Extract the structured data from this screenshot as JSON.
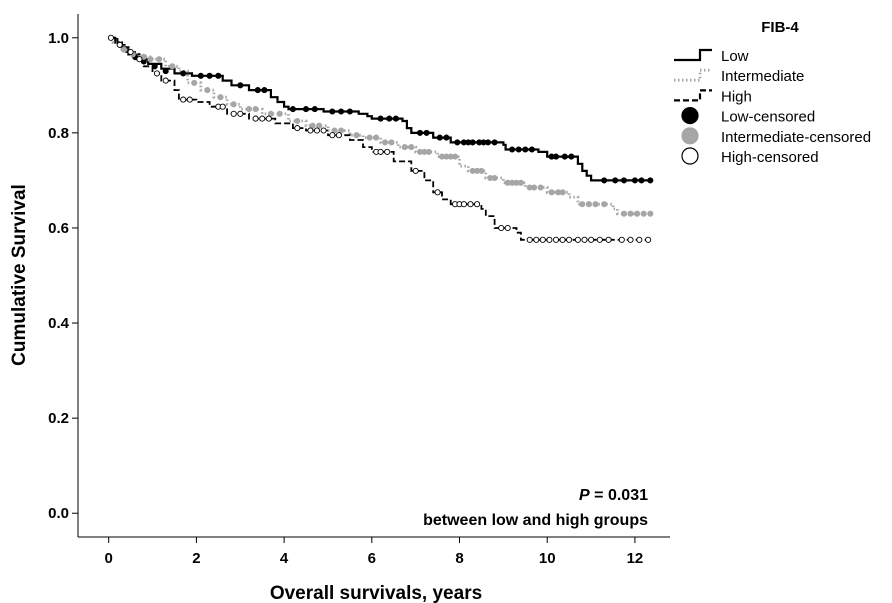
{
  "chart_data": {
    "type": "line",
    "xlabel": "Overall survivals, years",
    "ylabel": "Cumulative Survival",
    "xlim": [
      -0.7,
      12.8
    ],
    "ylim": [
      -0.05,
      1.05
    ],
    "x_ticks": [
      0,
      2,
      4,
      6,
      8,
      10,
      12
    ],
    "x_tick_labels": [
      "0",
      "2",
      "4",
      "6",
      "8",
      "10",
      "12"
    ],
    "y_ticks": [
      0.0,
      0.2,
      0.4,
      0.6,
      0.8,
      1.0
    ],
    "y_tick_labels": [
      "0.0",
      "0.2",
      "0.4",
      "0.6",
      "0.8",
      "1.0"
    ],
    "grid": false,
    "legend_title": "FIB-4",
    "legend_position": "top-right",
    "legend_entries": [
      {
        "label": "Low",
        "kind": "line",
        "style": "solid",
        "color": "#000000"
      },
      {
        "label": "Intermediate",
        "kind": "line",
        "style": "dotted",
        "color": "#a6a6a6"
      },
      {
        "label": "High",
        "kind": "line",
        "style": "dashed",
        "color": "#000000"
      },
      {
        "label": "Low-censored",
        "kind": "marker",
        "fill": "#000000",
        "stroke": "#000000"
      },
      {
        "label": "Intermediate-censored",
        "kind": "marker",
        "fill": "#a6a6a6",
        "stroke": "#a6a6a6"
      },
      {
        "label": "High-censored",
        "kind": "marker",
        "fill": "#ffffff",
        "stroke": "#000000"
      }
    ],
    "annotation": {
      "p_label": "P",
      "p_value": " = 0.031",
      "text": "between low and high groups"
    },
    "series": [
      {
        "name": "Low",
        "color": "#000000",
        "dash": "",
        "width": 2.2,
        "censor_fill": "#000000",
        "censor_stroke": "#000000",
        "steps": [
          [
            0,
            1.0
          ],
          [
            0.15,
            0.99
          ],
          [
            0.3,
            0.98
          ],
          [
            0.45,
            0.965
          ],
          [
            0.7,
            0.955
          ],
          [
            0.9,
            0.945
          ],
          [
            1.2,
            0.935
          ],
          [
            1.5,
            0.925
          ],
          [
            1.9,
            0.92
          ],
          [
            2.6,
            0.91
          ],
          [
            2.8,
            0.9
          ],
          [
            3.2,
            0.89
          ],
          [
            3.7,
            0.875
          ],
          [
            3.85,
            0.865
          ],
          [
            4.0,
            0.855
          ],
          [
            4.1,
            0.85
          ],
          [
            4.9,
            0.845
          ],
          [
            5.7,
            0.84
          ],
          [
            5.9,
            0.835
          ],
          [
            6.0,
            0.83
          ],
          [
            6.7,
            0.825
          ],
          [
            6.8,
            0.81
          ],
          [
            6.9,
            0.8
          ],
          [
            7.4,
            0.79
          ],
          [
            7.8,
            0.78
          ],
          [
            9.0,
            0.775
          ],
          [
            9.05,
            0.765
          ],
          [
            9.8,
            0.76
          ],
          [
            10.0,
            0.75
          ],
          [
            10.7,
            0.735
          ],
          [
            10.8,
            0.72
          ],
          [
            10.9,
            0.71
          ],
          [
            11.0,
            0.7
          ],
          [
            12.4,
            0.7
          ]
        ],
        "censored": [
          [
            0.6,
            0.96
          ],
          [
            0.8,
            0.95
          ],
          [
            1.05,
            0.94
          ],
          [
            1.3,
            0.93
          ],
          [
            1.7,
            0.925
          ],
          [
            2.1,
            0.92
          ],
          [
            2.3,
            0.92
          ],
          [
            2.5,
            0.92
          ],
          [
            3.0,
            0.9
          ],
          [
            3.4,
            0.89
          ],
          [
            3.55,
            0.89
          ],
          [
            4.2,
            0.85
          ],
          [
            4.5,
            0.85
          ],
          [
            4.7,
            0.85
          ],
          [
            5.1,
            0.845
          ],
          [
            5.3,
            0.845
          ],
          [
            5.5,
            0.845
          ],
          [
            6.2,
            0.83
          ],
          [
            6.4,
            0.83
          ],
          [
            6.55,
            0.83
          ],
          [
            7.1,
            0.8
          ],
          [
            7.25,
            0.8
          ],
          [
            7.55,
            0.79
          ],
          [
            7.7,
            0.79
          ],
          [
            7.95,
            0.78
          ],
          [
            8.1,
            0.78
          ],
          [
            8.2,
            0.78
          ],
          [
            8.3,
            0.78
          ],
          [
            8.45,
            0.78
          ],
          [
            8.55,
            0.78
          ],
          [
            8.65,
            0.78
          ],
          [
            8.8,
            0.78
          ],
          [
            9.2,
            0.765
          ],
          [
            9.35,
            0.765
          ],
          [
            9.5,
            0.765
          ],
          [
            9.65,
            0.765
          ],
          [
            10.1,
            0.75
          ],
          [
            10.2,
            0.75
          ],
          [
            10.4,
            0.75
          ],
          [
            10.55,
            0.75
          ],
          [
            11.3,
            0.7
          ],
          [
            11.55,
            0.7
          ],
          [
            11.75,
            0.7
          ],
          [
            12.0,
            0.7
          ],
          [
            12.15,
            0.7
          ],
          [
            12.35,
            0.7
          ]
        ]
      },
      {
        "name": "Intermediate",
        "color": "#a6a6a6",
        "dash": "1.5,2.5",
        "width": 2.8,
        "censor_fill": "#a6a6a6",
        "censor_stroke": "#a6a6a6",
        "steps": [
          [
            0,
            1.0
          ],
          [
            0.1,
            0.99
          ],
          [
            0.3,
            0.975
          ],
          [
            0.5,
            0.965
          ],
          [
            0.7,
            0.96
          ],
          [
            1.0,
            0.955
          ],
          [
            1.3,
            0.94
          ],
          [
            1.6,
            0.93
          ],
          [
            1.8,
            0.905
          ],
          [
            2.1,
            0.89
          ],
          [
            2.4,
            0.875
          ],
          [
            2.7,
            0.86
          ],
          [
            3.0,
            0.85
          ],
          [
            3.5,
            0.84
          ],
          [
            4.1,
            0.825
          ],
          [
            4.5,
            0.815
          ],
          [
            5.0,
            0.805
          ],
          [
            5.5,
            0.795
          ],
          [
            5.8,
            0.79
          ],
          [
            6.2,
            0.78
          ],
          [
            6.6,
            0.77
          ],
          [
            7.0,
            0.76
          ],
          [
            7.5,
            0.75
          ],
          [
            8.0,
            0.73
          ],
          [
            8.2,
            0.72
          ],
          [
            8.6,
            0.705
          ],
          [
            9.0,
            0.695
          ],
          [
            9.5,
            0.685
          ],
          [
            10.0,
            0.675
          ],
          [
            10.5,
            0.665
          ],
          [
            10.7,
            0.65
          ],
          [
            11.5,
            0.64
          ],
          [
            11.6,
            0.63
          ],
          [
            12.4,
            0.63
          ]
        ],
        "censored": [
          [
            0.35,
            0.975
          ],
          [
            0.55,
            0.965
          ],
          [
            0.8,
            0.96
          ],
          [
            0.95,
            0.955
          ],
          [
            1.15,
            0.955
          ],
          [
            1.45,
            0.94
          ],
          [
            1.95,
            0.905
          ],
          [
            2.25,
            0.89
          ],
          [
            2.55,
            0.875
          ],
          [
            2.85,
            0.86
          ],
          [
            3.2,
            0.85
          ],
          [
            3.35,
            0.85
          ],
          [
            3.7,
            0.84
          ],
          [
            3.9,
            0.84
          ],
          [
            4.3,
            0.825
          ],
          [
            4.65,
            0.815
          ],
          [
            4.8,
            0.815
          ],
          [
            5.15,
            0.805
          ],
          [
            5.3,
            0.805
          ],
          [
            5.65,
            0.795
          ],
          [
            5.95,
            0.79
          ],
          [
            6.1,
            0.79
          ],
          [
            6.3,
            0.78
          ],
          [
            6.45,
            0.78
          ],
          [
            6.75,
            0.77
          ],
          [
            6.9,
            0.77
          ],
          [
            7.1,
            0.76
          ],
          [
            7.2,
            0.76
          ],
          [
            7.3,
            0.76
          ],
          [
            7.6,
            0.75
          ],
          [
            7.7,
            0.75
          ],
          [
            7.8,
            0.75
          ],
          [
            7.9,
            0.75
          ],
          [
            8.3,
            0.72
          ],
          [
            8.4,
            0.72
          ],
          [
            8.5,
            0.72
          ],
          [
            8.7,
            0.705
          ],
          [
            8.8,
            0.705
          ],
          [
            9.1,
            0.695
          ],
          [
            9.2,
            0.695
          ],
          [
            9.3,
            0.695
          ],
          [
            9.4,
            0.695
          ],
          [
            9.6,
            0.685
          ],
          [
            9.7,
            0.685
          ],
          [
            9.85,
            0.685
          ],
          [
            10.1,
            0.675
          ],
          [
            10.25,
            0.675
          ],
          [
            10.35,
            0.675
          ],
          [
            10.8,
            0.65
          ],
          [
            10.95,
            0.65
          ],
          [
            11.1,
            0.65
          ],
          [
            11.3,
            0.65
          ],
          [
            11.75,
            0.63
          ],
          [
            11.9,
            0.63
          ],
          [
            12.05,
            0.63
          ],
          [
            12.2,
            0.63
          ],
          [
            12.35,
            0.63
          ]
        ]
      },
      {
        "name": "High",
        "color": "#000000",
        "dash": "6,3",
        "width": 1.8,
        "censor_fill": "#ffffff",
        "censor_stroke": "#000000",
        "steps": [
          [
            0,
            1.0
          ],
          [
            0.2,
            0.985
          ],
          [
            0.4,
            0.97
          ],
          [
            0.6,
            0.955
          ],
          [
            0.8,
            0.94
          ],
          [
            1.0,
            0.925
          ],
          [
            1.2,
            0.91
          ],
          [
            1.5,
            0.89
          ],
          [
            1.6,
            0.87
          ],
          [
            2.0,
            0.865
          ],
          [
            2.3,
            0.855
          ],
          [
            2.7,
            0.84
          ],
          [
            3.2,
            0.83
          ],
          [
            3.8,
            0.82
          ],
          [
            4.2,
            0.81
          ],
          [
            4.5,
            0.805
          ],
          [
            5.0,
            0.795
          ],
          [
            5.5,
            0.785
          ],
          [
            5.8,
            0.77
          ],
          [
            6.0,
            0.76
          ],
          [
            6.5,
            0.74
          ],
          [
            6.9,
            0.72
          ],
          [
            7.2,
            0.7
          ],
          [
            7.4,
            0.675
          ],
          [
            7.6,
            0.66
          ],
          [
            7.8,
            0.65
          ],
          [
            8.5,
            0.64
          ],
          [
            8.6,
            0.625
          ],
          [
            8.8,
            0.6
          ],
          [
            9.3,
            0.59
          ],
          [
            9.4,
            0.575
          ],
          [
            12.4,
            0.575
          ]
        ],
        "censored": [
          [
            0.05,
            1.0
          ],
          [
            0.25,
            0.985
          ],
          [
            0.5,
            0.97
          ],
          [
            0.7,
            0.955
          ],
          [
            1.1,
            0.925
          ],
          [
            1.3,
            0.91
          ],
          [
            1.7,
            0.87
          ],
          [
            1.85,
            0.87
          ],
          [
            2.5,
            0.855
          ],
          [
            2.6,
            0.855
          ],
          [
            2.85,
            0.84
          ],
          [
            3.0,
            0.84
          ],
          [
            3.35,
            0.83
          ],
          [
            3.5,
            0.83
          ],
          [
            3.65,
            0.83
          ],
          [
            4.3,
            0.81
          ],
          [
            4.6,
            0.805
          ],
          [
            4.75,
            0.805
          ],
          [
            4.9,
            0.805
          ],
          [
            5.1,
            0.795
          ],
          [
            5.25,
            0.795
          ],
          [
            6.1,
            0.76
          ],
          [
            6.2,
            0.76
          ],
          [
            6.35,
            0.76
          ],
          [
            7.0,
            0.72
          ],
          [
            7.5,
            0.675
          ],
          [
            7.9,
            0.65
          ],
          [
            8.0,
            0.65
          ],
          [
            8.1,
            0.65
          ],
          [
            8.25,
            0.65
          ],
          [
            8.4,
            0.65
          ],
          [
            8.95,
            0.6
          ],
          [
            9.1,
            0.6
          ],
          [
            9.6,
            0.575
          ],
          [
            9.75,
            0.575
          ],
          [
            9.9,
            0.575
          ],
          [
            10.05,
            0.575
          ],
          [
            10.2,
            0.575
          ],
          [
            10.35,
            0.575
          ],
          [
            10.5,
            0.575
          ],
          [
            10.7,
            0.575
          ],
          [
            10.85,
            0.575
          ],
          [
            11.0,
            0.575
          ],
          [
            11.2,
            0.575
          ],
          [
            11.4,
            0.575
          ],
          [
            11.7,
            0.575
          ],
          [
            11.9,
            0.575
          ],
          [
            12.1,
            0.575
          ],
          [
            12.3,
            0.575
          ]
        ]
      }
    ]
  }
}
